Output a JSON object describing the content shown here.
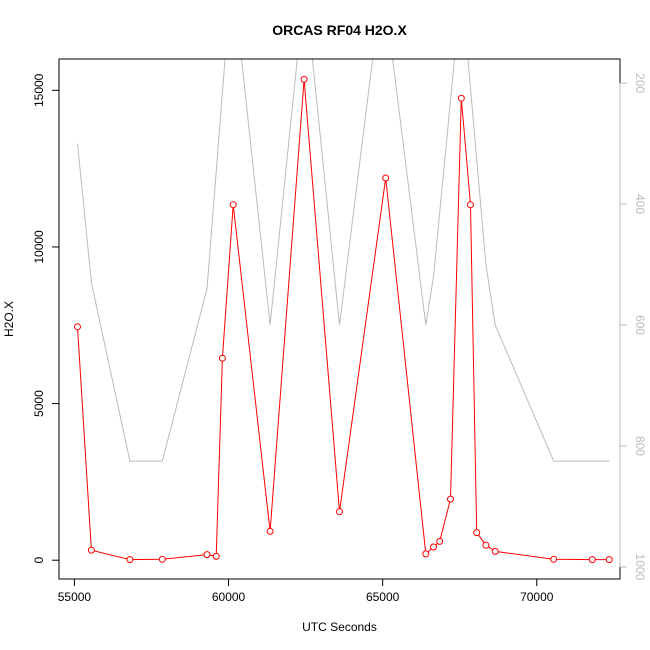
{
  "chart_data": {
    "type": "line",
    "title": "ORCAS RF04 H2O.X",
    "xlabel": "UTC Seconds",
    "ylabel": "H2O.X",
    "xlim": [
      54500,
      72700
    ],
    "ylim": [
      -600,
      16000
    ],
    "y2lim": [
      1020,
      160
    ],
    "x_ticks": [
      55000,
      60000,
      65000,
      70000
    ],
    "y_ticks": [
      0,
      5000,
      10000,
      15000
    ],
    "y2_ticks": [
      200,
      400,
      600,
      800,
      1000
    ],
    "grid": false,
    "legend": "none",
    "series": [
      {
        "color": "#ff0000",
        "marker": "open-circle",
        "x": [
          55100,
          55550,
          56800,
          57850,
          59300,
          59600,
          59800,
          60150,
          61350,
          62450,
          63600,
          65100,
          66400,
          66650,
          66850,
          67200,
          67550,
          67850,
          68050,
          68350,
          68650,
          70550,
          71800,
          72350
        ],
        "y": [
          7450,
          320,
          20,
          30,
          180,
          120,
          6450,
          11350,
          920,
          15350,
          1550,
          12200,
          200,
          420,
          600,
          1950,
          14750,
          11350,
          880,
          480,
          280,
          30,
          20,
          20
        ]
      },
      {
        "axis": "right",
        "color": "#bbbbbb",
        "marker": "none",
        "x": [
          55100,
          55550,
          56800,
          57850,
          59300,
          59900,
          60400,
          61350,
          62250,
          62700,
          63600,
          64700,
          65300,
          66400,
          66650,
          67350,
          67750,
          68350,
          68650,
          70550,
          72350
        ],
        "y": [
          300,
          530,
          825,
          825,
          540,
          150,
          150,
          600,
          150,
          150,
          600,
          150,
          150,
          600,
          520,
          150,
          150,
          500,
          600,
          825,
          825
        ]
      }
    ]
  }
}
